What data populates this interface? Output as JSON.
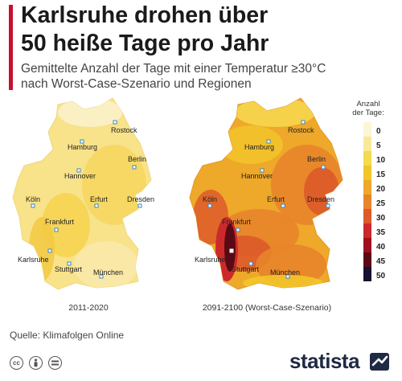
{
  "header": {
    "title_line1": "Karlsruhe drohen über",
    "title_line2": "50 heiße Tage pro Jahr",
    "subtitle_line1": "Gemittelte Anzahl der Tage mit einer Temperatur ≥30°C",
    "subtitle_line2": "nach Worst-Case-Szenario und Regionen"
  },
  "maps": [
    {
      "caption": "2011-2020",
      "cities": [
        "Rostock",
        "Hamburg",
        "Berlin",
        "Hannover",
        "Köln",
        "Erfurt",
        "Dresden",
        "Frankfurt",
        "Karlsruhe",
        "Stuttgart",
        "München"
      ]
    },
    {
      "caption": "2091-2100 (Worst-Case-Szenario)",
      "cities": [
        "Rostock",
        "Hamburg",
        "Berlin",
        "Hannover",
        "Köln",
        "Erfurt",
        "Dresden",
        "Frankfurt",
        "Karlsruhe",
        "Stuttgart",
        "München"
      ]
    }
  ],
  "legend": {
    "title_line1": "Anzahl",
    "title_line2": "der Tage:",
    "items": [
      {
        "label": "0",
        "color": "#fbf6d4"
      },
      {
        "label": "5",
        "color": "#f8e89a"
      },
      {
        "label": "10",
        "color": "#f5d94e"
      },
      {
        "label": "15",
        "color": "#f2c52a"
      },
      {
        "label": "20",
        "color": "#eea82a"
      },
      {
        "label": "25",
        "color": "#e8842a"
      },
      {
        "label": "30",
        "color": "#dd5a2a"
      },
      {
        "label": "35",
        "color": "#cc2a2a"
      },
      {
        "label": "40",
        "color": "#a01020"
      },
      {
        "label": "45",
        "color": "#5a0a14"
      },
      {
        "label": "50",
        "color": "#1a1030"
      }
    ]
  },
  "footer": {
    "source": "Quelle: Klimafolgen Online",
    "brand": "statista",
    "icons": [
      "cc-icon",
      "by-icon",
      "equals-icon"
    ]
  }
}
